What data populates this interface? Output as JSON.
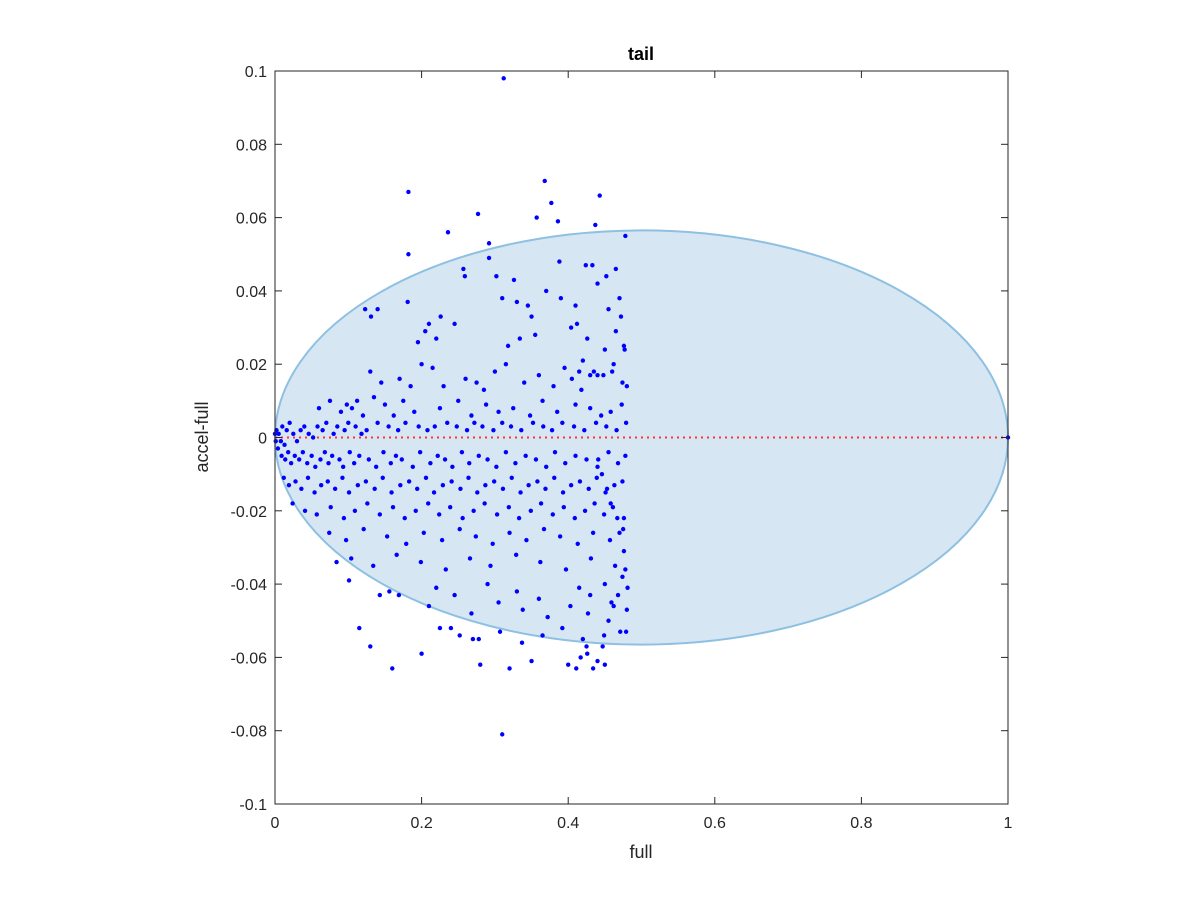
{
  "chart_data": {
    "type": "scatter",
    "title": "tail",
    "xlabel": "full",
    "ylabel": "accel-full",
    "xlim": [
      0,
      1
    ],
    "ylim": [
      -0.1,
      0.1
    ],
    "x_ticks": [
      0,
      0.2,
      0.4,
      0.6,
      0.8,
      1
    ],
    "x_tick_labels": [
      "0",
      "0.2",
      "0.4",
      "0.6",
      "0.8",
      "1"
    ],
    "y_ticks": [
      -0.1,
      -0.08,
      -0.06,
      -0.04,
      -0.02,
      0,
      0.02,
      0.04,
      0.06,
      0.08,
      0.1
    ],
    "y_tick_labels": [
      "-0.1",
      "-0.08",
      "-0.06",
      "-0.04",
      "-0.02",
      "0",
      "0.02",
      "0.04",
      "0.06",
      "0.08",
      "0.1"
    ],
    "grid": false,
    "legend": "none",
    "region": {
      "shape": "ellipse",
      "x_range": [
        0,
        1
      ],
      "y_range": [
        -0.0565,
        0.0565
      ],
      "fill_color": "#d6e7f3",
      "edge_color": "#8ec0e2"
    },
    "reference_line": {
      "y": 0,
      "x_range": [
        0,
        1
      ],
      "style": "dotted",
      "color": "#ff3333"
    },
    "series": [
      {
        "color": "#0000ff",
        "marker_size": 2.2,
        "x": [
          0.312,
          0.182,
          0.368,
          0.277,
          0.236,
          0.377,
          0.357,
          0.386,
          0.443,
          0.437,
          0.182,
          0.292,
          0.388,
          0.257,
          0.433,
          0.292,
          0.123,
          0.131,
          0.14,
          0.181,
          0.21,
          0.226,
          0.259,
          0.302,
          0.31,
          0.326,
          0.33,
          0.345,
          0.35,
          0.37,
          0.39,
          0.404,
          0.41,
          0.424,
          0.44,
          0.452,
          0.465,
          0.478,
          0.195,
          0.205,
          0.22,
          0.245,
          0.318,
          0.334,
          0.355,
          0.412,
          0.426,
          0.455,
          0.47,
          0.472,
          0.415,
          0.43,
          0.462,
          0.476,
          0.395,
          0.42,
          0.44,
          0.45,
          0.465,
          0.477,
          0.13,
          0.145,
          0.17,
          0.185,
          0.2,
          0.215,
          0.23,
          0.26,
          0.275,
          0.285,
          0.3,
          0.315,
          0.34,
          0.36,
          0.38,
          0.405,
          0.418,
          0.435,
          0.448,
          0.46,
          0.474,
          0.48,
          0.06,
          0.075,
          0.09,
          0.098,
          0.105,
          0.112,
          0.12,
          0.135,
          0.15,
          0.162,
          0.175,
          0.19,
          0.225,
          0.25,
          0.268,
          0.288,
          0.305,
          0.325,
          0.348,
          0.365,
          0.385,
          0.41,
          0.43,
          0.445,
          0.458,
          0.473,
          0.002,
          0.005,
          0.008,
          0.01,
          0.013,
          0.016,
          0.02,
          0.025,
          0.03,
          0.035,
          0.04,
          0.046,
          0.052,
          0.058,
          0.065,
          0.07,
          0.08,
          0.085,
          0.095,
          0.1,
          0.11,
          0.118,
          0.125,
          0.14,
          0.155,
          0.168,
          0.178,
          0.196,
          0.208,
          0.218,
          0.235,
          0.248,
          0.262,
          0.272,
          0.283,
          0.298,
          0.31,
          0.322,
          0.336,
          0.352,
          0.366,
          0.378,
          0.392,
          0.408,
          0.422,
          0.438,
          0.452,
          0.466,
          0.479,
          0.004,
          0.009,
          0.014,
          0.018,
          0.022,
          0.027,
          0.033,
          0.038,
          0.044,
          0.05,
          0.055,
          0.062,
          0.068,
          0.073,
          0.078,
          0.088,
          0.093,
          0.102,
          0.108,
          0.115,
          0.128,
          0.138,
          0.148,
          0.158,
          0.165,
          0.173,
          0.188,
          0.198,
          0.212,
          0.222,
          0.232,
          0.242,
          0.255,
          0.265,
          0.278,
          0.29,
          0.302,
          0.315,
          0.328,
          0.342,
          0.356,
          0.37,
          0.382,
          0.396,
          0.41,
          0.425,
          0.44,
          0.455,
          0.468,
          0.478,
          0.012,
          0.019,
          0.028,
          0.036,
          0.045,
          0.054,
          0.063,
          0.072,
          0.082,
          0.092,
          0.101,
          0.113,
          0.124,
          0.136,
          0.147,
          0.159,
          0.171,
          0.183,
          0.194,
          0.206,
          0.217,
          0.229,
          0.241,
          0.253,
          0.264,
          0.276,
          0.287,
          0.299,
          0.311,
          0.323,
          0.335,
          0.346,
          0.358,
          0.369,
          0.381,
          0.393,
          0.404,
          0.416,
          0.428,
          0.439,
          0.451,
          0.463,
          0.474,
          0.024,
          0.041,
          0.057,
          0.076,
          0.094,
          0.109,
          0.126,
          0.143,
          0.161,
          0.177,
          0.192,
          0.209,
          0.224,
          0.239,
          0.256,
          0.271,
          0.286,
          0.303,
          0.319,
          0.333,
          0.349,
          0.363,
          0.379,
          0.394,
          0.409,
          0.423,
          0.436,
          0.449,
          0.461,
          0.476,
          0.074,
          0.097,
          0.121,
          0.153,
          0.179,
          0.203,
          0.228,
          0.252,
          0.274,
          0.297,
          0.32,
          0.343,
          0.367,
          0.389,
          0.413,
          0.434,
          0.457,
          0.475,
          0.104,
          0.134,
          0.166,
          0.199,
          0.233,
          0.266,
          0.294,
          0.329,
          0.362,
          0.397,
          0.431,
          0.464,
          0.22,
          0.245,
          0.29,
          0.33,
          0.36,
          0.415,
          0.43,
          0.45,
          0.21,
          0.268,
          0.305,
          0.338,
          0.372,
          0.403,
          0.427,
          0.459,
          0.225,
          0.252,
          0.278,
          0.307,
          0.337,
          0.365,
          0.392,
          0.42,
          0.447,
          0.471,
          0.143,
          0.156,
          0.169,
          0.101,
          0.084,
          0.479,
          0.48,
          0.481,
          0.478,
          0.476,
          0.47,
          0.467,
          0.458,
          0.453,
          0.446,
          0.441,
          0.45,
          0.44,
          0.434,
          0.426,
          0.411,
          0.4,
          0.417,
          0.425,
          0.449,
          0.455,
          0.462,
          0.468,
          0.474,
          0.28,
          0.32,
          0.35,
          0.31,
          0.27,
          0.24,
          0.2,
          0.16,
          0.13,
          0.115,
          1.0,
          0.0,
          0.001
        ],
        "y": [
          0.098,
          0.067,
          0.07,
          0.061,
          0.056,
          0.064,
          0.06,
          0.059,
          0.066,
          0.058,
          0.05,
          0.053,
          0.048,
          0.046,
          0.047,
          0.049,
          0.035,
          0.033,
          0.035,
          0.037,
          0.031,
          0.033,
          0.044,
          0.044,
          0.038,
          0.043,
          0.037,
          0.036,
          0.033,
          0.04,
          0.038,
          0.03,
          0.036,
          0.047,
          0.042,
          0.044,
          0.046,
          0.055,
          0.026,
          0.029,
          0.027,
          0.031,
          0.025,
          0.027,
          0.028,
          0.031,
          0.027,
          0.035,
          0.038,
          0.033,
          0.018,
          0.017,
          0.02,
          0.025,
          0.019,
          0.021,
          0.017,
          0.024,
          0.029,
          0.024,
          0.018,
          0.015,
          0.016,
          0.014,
          0.02,
          0.019,
          0.014,
          0.016,
          0.015,
          0.013,
          0.018,
          0.02,
          0.015,
          0.017,
          0.014,
          0.016,
          0.013,
          0.018,
          0.017,
          0.018,
          0.015,
          0.014,
          0.008,
          0.01,
          0.007,
          0.009,
          0.008,
          0.01,
          0.006,
          0.011,
          0.009,
          0.006,
          0.01,
          0.007,
          0.008,
          0.01,
          0.006,
          0.009,
          0.007,
          0.008,
          0.006,
          0.01,
          0.007,
          0.009,
          0.008,
          0.006,
          0.007,
          0.009,
          0.002,
          0.001,
          -0.001,
          0.003,
          -0.002,
          0.002,
          0.004,
          0.001,
          -0.001,
          0.002,
          0.003,
          0.001,
          0.0,
          0.003,
          0.002,
          0.004,
          0.001,
          0.003,
          0.002,
          0.004,
          0.003,
          0.001,
          0.002,
          0.004,
          0.003,
          0.002,
          0.004,
          0.003,
          0.002,
          0.003,
          0.004,
          0.003,
          0.002,
          0.004,
          0.003,
          0.002,
          0.004,
          0.003,
          0.002,
          0.004,
          0.003,
          0.002,
          0.004,
          0.003,
          0.002,
          0.004,
          0.003,
          0.002,
          0.004,
          -0.003,
          -0.005,
          -0.006,
          -0.004,
          -0.007,
          -0.005,
          -0.006,
          -0.004,
          -0.007,
          -0.005,
          -0.008,
          -0.006,
          -0.004,
          -0.007,
          -0.005,
          -0.006,
          -0.008,
          -0.004,
          -0.007,
          -0.005,
          -0.006,
          -0.008,
          -0.004,
          -0.007,
          -0.005,
          -0.006,
          -0.008,
          -0.004,
          -0.007,
          -0.005,
          -0.006,
          -0.008,
          -0.004,
          -0.007,
          -0.005,
          -0.006,
          -0.008,
          -0.004,
          -0.007,
          -0.005,
          -0.006,
          -0.008,
          -0.004,
          -0.007,
          -0.005,
          -0.006,
          -0.008,
          -0.004,
          -0.007,
          -0.005,
          -0.011,
          -0.013,
          -0.012,
          -0.014,
          -0.011,
          -0.015,
          -0.013,
          -0.012,
          -0.014,
          -0.011,
          -0.015,
          -0.013,
          -0.012,
          -0.014,
          -0.011,
          -0.015,
          -0.013,
          -0.012,
          -0.014,
          -0.011,
          -0.015,
          -0.013,
          -0.012,
          -0.014,
          -0.011,
          -0.015,
          -0.013,
          -0.012,
          -0.014,
          -0.011,
          -0.015,
          -0.013,
          -0.012,
          -0.014,
          -0.011,
          -0.015,
          -0.013,
          -0.012,
          -0.014,
          -0.011,
          -0.015,
          -0.013,
          -0.012,
          -0.018,
          -0.02,
          -0.021,
          -0.019,
          -0.022,
          -0.02,
          -0.018,
          -0.021,
          -0.019,
          -0.022,
          -0.02,
          -0.018,
          -0.021,
          -0.019,
          -0.022,
          -0.02,
          -0.018,
          -0.021,
          -0.019,
          -0.022,
          -0.02,
          -0.018,
          -0.021,
          -0.019,
          -0.022,
          -0.02,
          -0.018,
          -0.021,
          -0.019,
          -0.022,
          -0.026,
          -0.028,
          -0.025,
          -0.027,
          -0.029,
          -0.026,
          -0.028,
          -0.025,
          -0.027,
          -0.029,
          -0.026,
          -0.028,
          -0.025,
          -0.027,
          -0.029,
          -0.026,
          -0.028,
          -0.025,
          -0.033,
          -0.035,
          -0.032,
          -0.034,
          -0.036,
          -0.033,
          -0.035,
          -0.032,
          -0.034,
          -0.036,
          -0.033,
          -0.035,
          -0.041,
          -0.043,
          -0.04,
          -0.042,
          -0.044,
          -0.041,
          -0.043,
          -0.04,
          -0.046,
          -0.048,
          -0.045,
          -0.047,
          -0.049,
          -0.046,
          -0.048,
          -0.045,
          -0.052,
          -0.054,
          -0.055,
          -0.053,
          -0.056,
          -0.054,
          -0.052,
          -0.055,
          -0.057,
          -0.053,
          -0.043,
          -0.042,
          -0.043,
          -0.039,
          -0.034,
          -0.053,
          -0.047,
          -0.041,
          -0.036,
          -0.031,
          -0.026,
          -0.022,
          -0.018,
          -0.014,
          -0.01,
          -0.006,
          -0.062,
          -0.061,
          -0.063,
          -0.059,
          -0.063,
          -0.062,
          -0.06,
          -0.057,
          -0.054,
          -0.05,
          -0.046,
          -0.043,
          -0.038,
          -0.062,
          -0.063,
          -0.061,
          -0.081,
          -0.055,
          -0.052,
          -0.059,
          -0.063,
          -0.057,
          -0.052,
          0.0,
          0.001,
          -0.001
        ]
      }
    ]
  }
}
